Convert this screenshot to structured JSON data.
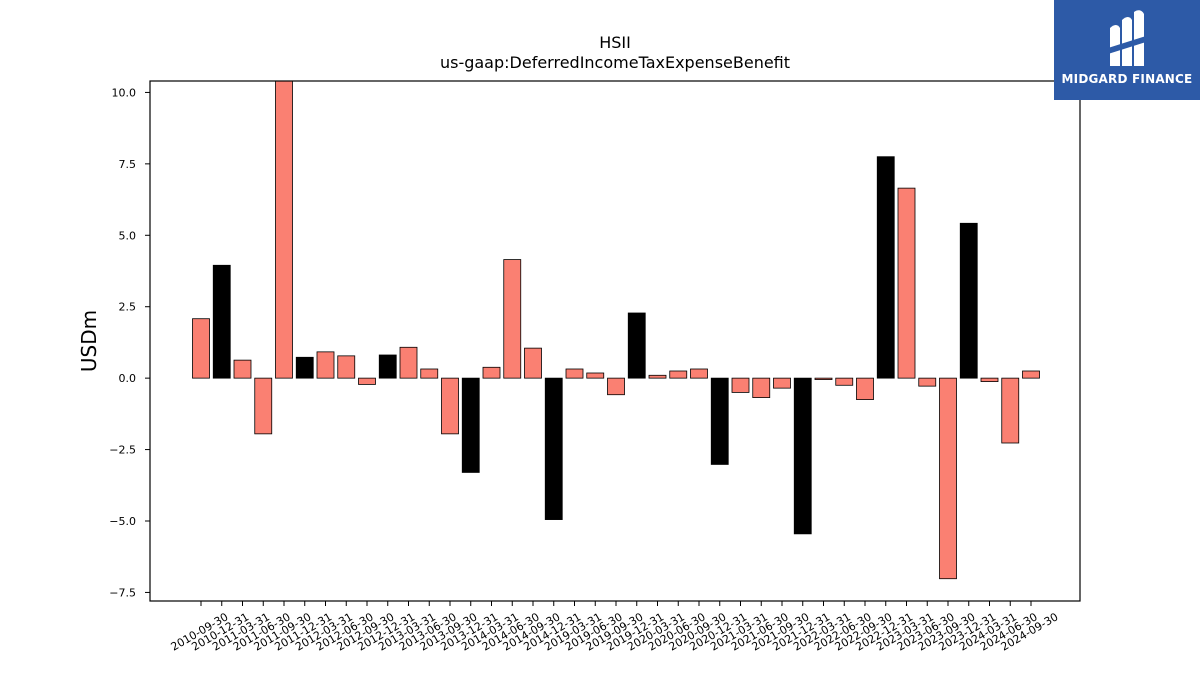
{
  "brand": {
    "name": "MIDGARD FINANCE"
  },
  "chart_data": {
    "type": "bar",
    "title": "HSII",
    "subtitle": "us-gaap:DeferredIncomeTaxExpenseBenefit",
    "xlabel": "",
    "ylabel": "USDm",
    "ylim": [
      -7.8,
      10.4
    ],
    "yticks": [
      -7.5,
      -5.0,
      -2.5,
      0.0,
      2.5,
      5.0,
      7.5,
      10.0
    ],
    "ytick_labels": [
      "−7.5",
      "−5.0",
      "−2.5",
      "0.0",
      "2.5",
      "5.0",
      "7.5",
      "10.0"
    ],
    "grid": false,
    "colors": {
      "quarterly": "#fa8072",
      "annual": "#000000"
    },
    "categories": [
      "2010-09-30",
      "2010-12-31",
      "2011-03-31",
      "2011-06-30",
      "2011-09-30",
      "2011-12-31",
      "2012-03-31",
      "2012-06-30",
      "2012-09-30",
      "2012-12-31",
      "2013-03-31",
      "2013-06-30",
      "2013-09-30",
      "2013-12-31",
      "2014-03-31",
      "2014-06-30",
      "2014-09-30",
      "2014-12-31",
      "2019-03-31",
      "2019-06-30",
      "2019-09-30",
      "2019-12-31",
      "2020-03-31",
      "2020-06-30",
      "2020-09-30",
      "2020-12-31",
      "2021-03-31",
      "2021-06-30",
      "2021-09-30",
      "2021-12-31",
      "2022-03-31",
      "2022-06-30",
      "2022-09-30",
      "2022-12-31",
      "2023-03-31",
      "2023-06-30",
      "2023-09-30",
      "2023-12-31",
      "2024-03-31",
      "2024-06-30",
      "2024-09-30"
    ],
    "values": [
      2.08,
      3.95,
      0.63,
      -1.95,
      10.6,
      0.73,
      0.92,
      0.78,
      -0.22,
      0.81,
      1.08,
      0.32,
      -1.95,
      -3.3,
      0.38,
      4.15,
      1.05,
      -4.95,
      0.32,
      0.18,
      -0.58,
      2.28,
      0.1,
      0.25,
      0.32,
      -3.02,
      -0.5,
      -0.68,
      -0.35,
      -5.45,
      -0.05,
      -0.25,
      -0.75,
      7.75,
      6.65,
      -0.28,
      -7.02,
      5.42,
      -0.12,
      -2.27,
      0.25
    ],
    "period": [
      "Q",
      "FY",
      "Q",
      "Q",
      "Q",
      "FY",
      "Q",
      "Q",
      "Q",
      "FY",
      "Q",
      "Q",
      "Q",
      "FY",
      "Q",
      "Q",
      "Q",
      "FY",
      "Q",
      "Q",
      "Q",
      "FY",
      "Q",
      "Q",
      "Q",
      "FY",
      "Q",
      "Q",
      "Q",
      "FY",
      "Q",
      "Q",
      "Q",
      "FY",
      "Q",
      "Q",
      "Q",
      "FY",
      "Q",
      "Q",
      "Q"
    ]
  }
}
